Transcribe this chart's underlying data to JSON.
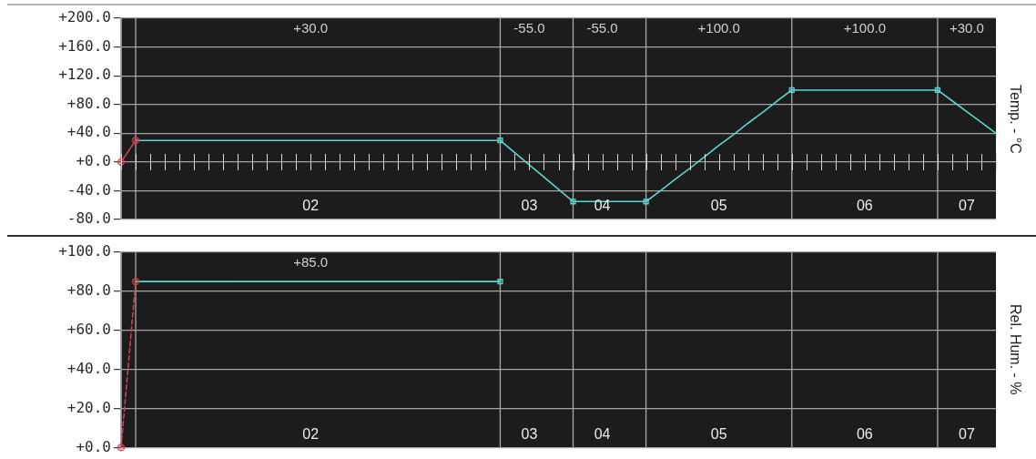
{
  "chart_data": [
    {
      "type": "line",
      "ylabel": "Temp. - °C",
      "categories": [
        null,
        null,
        null,
        null,
        null,
        null,
        null,
        null,
        null,
        null,
        null,
        null,
        null,
        "02",
        null,
        null,
        null,
        null,
        null,
        null,
        null,
        null,
        null,
        null,
        null,
        null,
        null,
        null,
        "03",
        null,
        null,
        null,
        null,
        "04",
        null,
        null,
        null,
        null,
        null,
        null,
        null,
        "05",
        null,
        null,
        null,
        null,
        null,
        null,
        null,
        null,
        null,
        "06",
        null,
        null,
        null,
        null,
        null,
        null,
        "07",
        null,
        null
      ],
      "ylim": [
        -80,
        200
      ],
      "yticks": [
        {
          "value": 200,
          "label": "+200.0"
        },
        {
          "value": 160,
          "label": "+160.0"
        },
        {
          "value": 120,
          "label": "+120.0"
        },
        {
          "value": 80,
          "label": "+80.0"
        },
        {
          "value": 40,
          "label": "+40.0"
        },
        {
          "value": 0,
          "label": "+0.0"
        },
        {
          "value": -40,
          "label": "-40.0"
        },
        {
          "value": -80,
          "label": "-80.0"
        }
      ],
      "grid": true,
      "series": [
        {
          "color": "#d0434e",
          "marker": "circle",
          "values": [
            0,
            30,
            null,
            null,
            null,
            null,
            null,
            null,
            null,
            null,
            null,
            null,
            null,
            null,
            null,
            null,
            null,
            null,
            null,
            null,
            null,
            null,
            null,
            null,
            null,
            null,
            null,
            null,
            null,
            null,
            null,
            null,
            null,
            null,
            null,
            null,
            null,
            null,
            null,
            null,
            null,
            null,
            null,
            null,
            null,
            null,
            null,
            null,
            null,
            null,
            null,
            null,
            null,
            null,
            null,
            null,
            null,
            null,
            null,
            null,
            null
          ]
        },
        {
          "color": "#5cd6cc",
          "values": [
            null,
            30,
            30,
            30,
            30,
            30,
            30,
            30,
            30,
            30,
            30,
            30,
            30,
            30,
            30,
            30,
            30,
            30,
            30,
            30,
            30,
            30,
            30,
            30,
            30,
            30,
            30,
            13,
            -4,
            -21,
            -38,
            -55,
            -55,
            -55,
            -55,
            -55,
            -55,
            -40,
            -24,
            -9,
            7,
            23,
            38,
            54,
            69,
            85,
            100,
            100,
            100,
            100,
            100,
            100,
            100,
            100,
            100,
            100,
            100,
            85,
            70,
            55,
            40
          ]
        },
        {
          "type": "scatter",
          "color": "#5cd6cc",
          "marker": "square",
          "values": [
            null,
            null,
            null,
            null,
            null,
            null,
            null,
            null,
            null,
            null,
            null,
            null,
            null,
            null,
            null,
            null,
            null,
            null,
            null,
            null,
            null,
            null,
            null,
            null,
            null,
            null,
            30,
            null,
            null,
            null,
            null,
            -55,
            null,
            null,
            null,
            null,
            -55,
            null,
            null,
            null,
            null,
            null,
            null,
            null,
            null,
            null,
            100,
            null,
            null,
            null,
            null,
            null,
            null,
            null,
            null,
            null,
            100,
            null,
            null,
            null,
            null
          ]
        }
      ],
      "annotations": [
        "+30.0",
        "-55.0",
        "-55.0",
        "+100.0",
        "+100.0",
        "+30.0"
      ]
    },
    {
      "type": "line",
      "ylabel": "Rel. Hum. - %",
      "categories": [
        null,
        null,
        null,
        null,
        null,
        null,
        null,
        null,
        null,
        null,
        null,
        null,
        null,
        "02",
        null,
        null,
        null,
        null,
        null,
        null,
        null,
        null,
        null,
        null,
        null,
        null,
        null,
        null,
        "03",
        null,
        null,
        null,
        null,
        "04",
        null,
        null,
        null,
        null,
        null,
        null,
        null,
        "05",
        null,
        null,
        null,
        null,
        null,
        null,
        null,
        null,
        null,
        "06",
        null,
        null,
        null,
        null,
        null,
        null,
        "07",
        null,
        null
      ],
      "ylim": [
        0,
        100
      ],
      "yticks": [
        {
          "value": 100,
          "label": "+100.0"
        },
        {
          "value": 80,
          "label": "+80.0"
        },
        {
          "value": 60,
          "label": "+60.0"
        },
        {
          "value": 40,
          "label": "+40.0"
        },
        {
          "value": 20,
          "label": "+20.0"
        },
        {
          "value": 0,
          "label": "+0.0"
        }
      ],
      "grid": true,
      "series": [
        {
          "color": "#d0434e",
          "marker": "circle",
          "line_style": "dashed",
          "values": [
            0,
            85,
            null,
            null,
            null,
            null,
            null,
            null,
            null,
            null,
            null,
            null,
            null,
            null,
            null,
            null,
            null,
            null,
            null,
            null,
            null,
            null,
            null,
            null,
            null,
            null,
            null,
            null,
            null,
            null,
            null,
            null,
            null,
            null,
            null,
            null,
            null,
            null,
            null,
            null,
            null,
            null,
            null,
            null,
            null,
            null,
            null,
            null,
            null,
            null,
            null,
            null,
            null,
            null,
            null,
            null,
            null,
            null,
            null,
            null,
            null
          ]
        },
        {
          "color": "#5cd6cc",
          "values": [
            null,
            85,
            85,
            85,
            85,
            85,
            85,
            85,
            85,
            85,
            85,
            85,
            85,
            85,
            85,
            85,
            85,
            85,
            85,
            85,
            85,
            85,
            85,
            85,
            85,
            85,
            85,
            null,
            null,
            null,
            null,
            null,
            null,
            null,
            null,
            null,
            null,
            null,
            null,
            null,
            null,
            null,
            null,
            null,
            null,
            null,
            null,
            null,
            null,
            null,
            null,
            null,
            null,
            null,
            null,
            null,
            null,
            null,
            null,
            null,
            null
          ]
        },
        {
          "type": "scatter",
          "color": "#5cd6cc",
          "marker": "square",
          "values": [
            null,
            null,
            null,
            null,
            null,
            null,
            null,
            null,
            null,
            null,
            null,
            null,
            null,
            null,
            null,
            null,
            null,
            null,
            null,
            null,
            null,
            null,
            null,
            null,
            null,
            null,
            85,
            null,
            null,
            null,
            null,
            null,
            null,
            null,
            null,
            null,
            null,
            null,
            null,
            null,
            null,
            null,
            null,
            null,
            null,
            null,
            null,
            null,
            null,
            null,
            null,
            null,
            null,
            null,
            null,
            null,
            null,
            null,
            null,
            null,
            null
          ]
        }
      ],
      "annotations": [
        "+85.0"
      ]
    }
  ]
}
